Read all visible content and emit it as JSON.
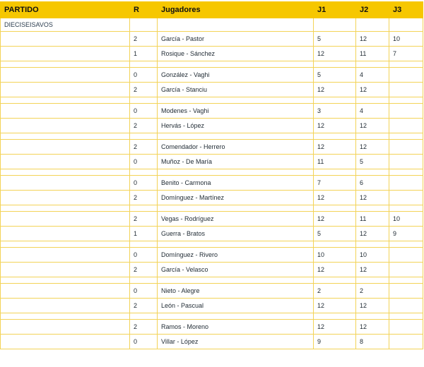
{
  "header": {
    "partido": "PARTIDO",
    "r": "R",
    "jugadores": "Jugadores",
    "j1": "J1",
    "j2": "J2",
    "j3": "J3"
  },
  "round_label": "DIECISEISAVOS",
  "matches": [
    [
      {
        "r": "2",
        "players": "García - Pastor",
        "j1": "5",
        "j2": "12",
        "j3": "10"
      },
      {
        "r": "1",
        "players": "Rosique - Sánchez",
        "j1": "12",
        "j2": "11",
        "j3": "7"
      }
    ],
    [
      {
        "r": "0",
        "players": "González - Vaghi",
        "j1": "5",
        "j2": "4",
        "j3": ""
      },
      {
        "r": "2",
        "players": "García - Stanciu",
        "j1": "12",
        "j2": "12",
        "j3": ""
      }
    ],
    [
      {
        "r": "0",
        "players": "Modenes - Vaghi",
        "j1": "3",
        "j2": "4",
        "j3": ""
      },
      {
        "r": "2",
        "players": "Hervás - López",
        "j1": "12",
        "j2": "12",
        "j3": ""
      }
    ],
    [
      {
        "r": "2",
        "players": "Comendador - Herrero",
        "j1": "12",
        "j2": "12",
        "j3": ""
      },
      {
        "r": "0",
        "players": "Muñoz - De María",
        "j1": "11",
        "j2": "5",
        "j3": ""
      }
    ],
    [
      {
        "r": "0",
        "players": "Benito - Carmona",
        "j1": "7",
        "j2": "6",
        "j3": ""
      },
      {
        "r": "2",
        "players": "Domínguez - Martínez",
        "j1": "12",
        "j2": "12",
        "j3": ""
      }
    ],
    [
      {
        "r": "2",
        "players": "Vegas - Rodríguez",
        "j1": "12",
        "j2": "11",
        "j3": "10"
      },
      {
        "r": "1",
        "players": "Guerra - Bratos",
        "j1": "5",
        "j2": "12",
        "j3": "9"
      }
    ],
    [
      {
        "r": "0",
        "players": "Domínguez - Rivero",
        "j1": "10",
        "j2": "10",
        "j3": ""
      },
      {
        "r": "2",
        "players": "García - Velasco",
        "j1": "12",
        "j2": "12",
        "j3": ""
      }
    ],
    [
      {
        "r": "0",
        "players": "Nieto - Alegre",
        "j1": "2",
        "j2": "2",
        "j3": ""
      },
      {
        "r": "2",
        "players": "León - Pascual",
        "j1": "12",
        "j2": "12",
        "j3": ""
      }
    ],
    [
      {
        "r": "2",
        "players": "Ramos - Moreno",
        "j1": "12",
        "j2": "12",
        "j3": ""
      },
      {
        "r": "0",
        "players": "Villar - López",
        "j1": "9",
        "j2": "8",
        "j3": ""
      }
    ]
  ]
}
